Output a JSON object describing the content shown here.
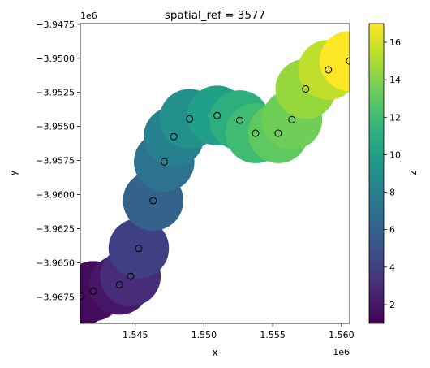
{
  "chart_data": {
    "type": "scatter",
    "title": "spatial_ref = 3577",
    "xlabel": "x",
    "ylabel": "y",
    "x_offset_label": "1e6",
    "y_offset_label": "1e6",
    "xlim": [
      1.541,
      1.5606
    ],
    "ylim": [
      -3.96945,
      -3.94745
    ],
    "x_ticks": [
      {
        "value": 1.545,
        "label": "1.545"
      },
      {
        "value": 1.55,
        "label": "1.550"
      },
      {
        "value": 1.555,
        "label": "1.555"
      },
      {
        "value": 1.56,
        "label": "1.560"
      }
    ],
    "y_ticks": [
      {
        "value": -3.9475,
        "label": "−3.9475"
      },
      {
        "value": -3.95,
        "label": "−3.9500"
      },
      {
        "value": -3.9525,
        "label": "−3.9525"
      },
      {
        "value": -3.955,
        "label": "−3.9550"
      },
      {
        "value": -3.9575,
        "label": "−3.9575"
      },
      {
        "value": -3.96,
        "label": "−3.9600"
      },
      {
        "value": -3.9625,
        "label": "−3.9625"
      },
      {
        "value": -3.965,
        "label": "−3.9650"
      },
      {
        "value": -3.9675,
        "label": "−3.9675"
      }
    ],
    "buffer_radius": 0.0022,
    "points": [
      {
        "x": 1.54105,
        "y": -3.96745,
        "z": 1
      },
      {
        "x": 1.54195,
        "y": -3.96708,
        "z": 1.5
      },
      {
        "x": 1.54385,
        "y": -3.96662,
        "z": 2
      },
      {
        "x": 1.54465,
        "y": -3.966,
        "z": 3
      },
      {
        "x": 1.54525,
        "y": -3.96395,
        "z": 4
      },
      {
        "x": 1.5463,
        "y": -3.96045,
        "z": 6
      },
      {
        "x": 1.5471,
        "y": -3.9576,
        "z": 7
      },
      {
        "x": 1.5478,
        "y": -3.95575,
        "z": 8
      },
      {
        "x": 1.54895,
        "y": -3.95445,
        "z": 9
      },
      {
        "x": 1.55095,
        "y": -3.9542,
        "z": 10
      },
      {
        "x": 1.5526,
        "y": -3.95455,
        "z": 11
      },
      {
        "x": 1.55375,
        "y": -3.9555,
        "z": 12
      },
      {
        "x": 1.5554,
        "y": -3.9555,
        "z": 13
      },
      {
        "x": 1.5564,
        "y": -3.9545,
        "z": 13.5
      },
      {
        "x": 1.5574,
        "y": -3.95225,
        "z": 14.5
      },
      {
        "x": 1.55905,
        "y": -3.95085,
        "z": 15.5
      },
      {
        "x": 1.5606,
        "y": -3.9502,
        "z": 17
      }
    ],
    "colorbar": {
      "label": "z",
      "colormap": "viridis",
      "range": [
        1,
        17
      ],
      "ticks": [
        {
          "value": 2,
          "label": "2"
        },
        {
          "value": 4,
          "label": "4"
        },
        {
          "value": 6,
          "label": "6"
        },
        {
          "value": 8,
          "label": "8"
        },
        {
          "value": 10,
          "label": "10"
        },
        {
          "value": 12,
          "label": "12"
        },
        {
          "value": 14,
          "label": "14"
        },
        {
          "value": 16,
          "label": "16"
        }
      ]
    },
    "grid": false,
    "legend": "none"
  }
}
